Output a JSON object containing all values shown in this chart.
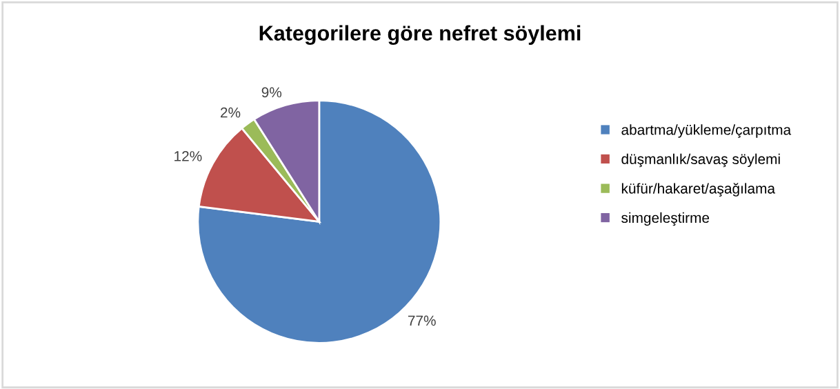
{
  "chart_data": {
    "type": "pie",
    "title": "Kategorilere göre nefret söylemi",
    "categories": [
      "abartma/yükleme/çarpıtma",
      "düşmanlık/savaş söylemi",
      "küfür/hakaret/aşağılama",
      "simgeleştirme"
    ],
    "values": [
      77,
      12,
      2,
      9
    ],
    "colors": [
      "#4f81bd",
      "#c0504d",
      "#9bbb59",
      "#8064a2"
    ],
    "value_labels": [
      "77%",
      "12%",
      "2%",
      "9%"
    ],
    "legend": "right"
  }
}
